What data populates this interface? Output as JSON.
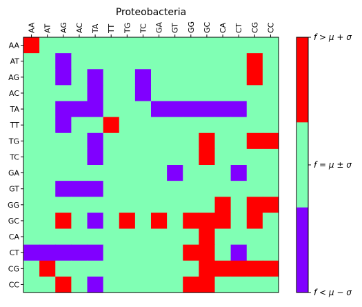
{
  "chart_data": {
    "type": "heatmap",
    "title": "Proteobacteria",
    "xlabel": "",
    "ylabel": "",
    "x_categories": [
      "AA",
      "AT",
      "AG",
      "AC",
      "TA",
      "TT",
      "TG",
      "TC",
      "GA",
      "GT",
      "GG",
      "GC",
      "CA",
      "CT",
      "CG",
      "CC"
    ],
    "y_categories": [
      "AA",
      "AT",
      "AG",
      "AC",
      "TA",
      "TT",
      "TG",
      "TC",
      "GA",
      "GT",
      "GG",
      "GC",
      "CA",
      "CT",
      "CG",
      "CC"
    ],
    "x_tick_position": "top",
    "grid": false,
    "levels": [
      {
        "value": -1,
        "label": "f < μ − σ",
        "color": "#8000ff"
      },
      {
        "value": 0,
        "label": "f = μ ± σ",
        "color": "#80ffb4"
      },
      {
        "value": 1,
        "label": "f > μ + σ",
        "color": "#ff0000"
      }
    ],
    "values": [
      [
        1,
        0,
        0,
        0,
        0,
        0,
        0,
        0,
        0,
        0,
        0,
        0,
        0,
        0,
        0,
        0
      ],
      [
        0,
        0,
        -1,
        0,
        0,
        0,
        0,
        0,
        0,
        0,
        0,
        0,
        0,
        0,
        1,
        0
      ],
      [
        0,
        0,
        -1,
        0,
        -1,
        0,
        0,
        -1,
        0,
        0,
        0,
        0,
        0,
        0,
        1,
        0
      ],
      [
        0,
        0,
        0,
        0,
        -1,
        0,
        0,
        -1,
        0,
        0,
        0,
        0,
        0,
        0,
        0,
        0
      ],
      [
        0,
        0,
        -1,
        -1,
        -1,
        0,
        0,
        0,
        -1,
        -1,
        -1,
        -1,
        -1,
        -1,
        0,
        0
      ],
      [
        0,
        0,
        -1,
        0,
        0,
        1,
        0,
        0,
        0,
        0,
        0,
        0,
        0,
        0,
        0,
        0
      ],
      [
        0,
        0,
        0,
        0,
        -1,
        0,
        0,
        0,
        0,
        0,
        0,
        1,
        0,
        0,
        1,
        1
      ],
      [
        0,
        0,
        0,
        0,
        -1,
        0,
        0,
        0,
        0,
        0,
        0,
        1,
        0,
        0,
        0,
        0
      ],
      [
        0,
        0,
        0,
        0,
        0,
        0,
        0,
        0,
        0,
        -1,
        0,
        0,
        0,
        -1,
        0,
        0
      ],
      [
        0,
        0,
        -1,
        -1,
        -1,
        0,
        0,
        0,
        0,
        0,
        0,
        0,
        0,
        0,
        0,
        0
      ],
      [
        0,
        0,
        0,
        0,
        0,
        0,
        0,
        0,
        0,
        0,
        0,
        0,
        1,
        0,
        1,
        1
      ],
      [
        0,
        0,
        1,
        0,
        -1,
        0,
        1,
        0,
        1,
        0,
        1,
        1,
        1,
        0,
        1,
        0
      ],
      [
        0,
        0,
        0,
        0,
        0,
        0,
        0,
        0,
        0,
        0,
        0,
        1,
        0,
        0,
        0,
        0
      ],
      [
        -1,
        -1,
        -1,
        -1,
        -1,
        0,
        0,
        0,
        0,
        0,
        1,
        1,
        0,
        -1,
        0,
        0
      ],
      [
        0,
        1,
        0,
        0,
        0,
        0,
        0,
        0,
        0,
        0,
        0,
        1,
        1,
        1,
        1,
        1
      ],
      [
        0,
        0,
        1,
        0,
        -1,
        0,
        0,
        0,
        0,
        0,
        1,
        1,
        0,
        0,
        0,
        0
      ]
    ]
  }
}
